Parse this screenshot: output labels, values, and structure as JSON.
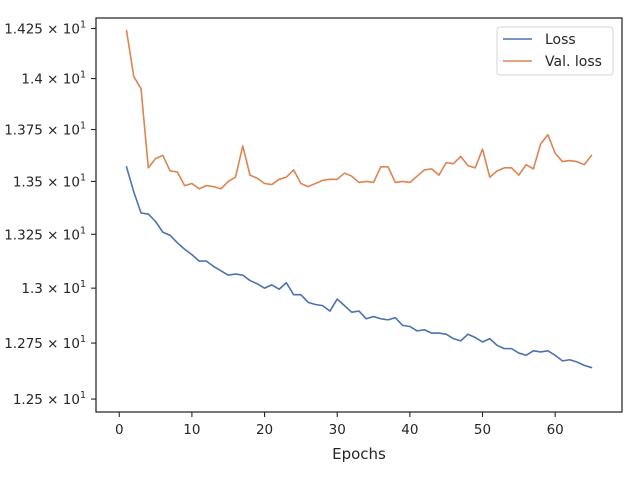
{
  "chart_data": {
    "type": "line",
    "title": "",
    "xlabel": "Epochs",
    "ylabel": "",
    "xlim": [
      -3.2,
      69.2
    ],
    "ylim": [
      12.443,
      14.303
    ],
    "log_y": true,
    "grid": false,
    "legend_position": "top-right",
    "x_ticks": [
      {
        "value": 0,
        "label": "0"
      },
      {
        "value": 10,
        "label": "10"
      },
      {
        "value": 20,
        "label": "20"
      },
      {
        "value": 30,
        "label": "30"
      },
      {
        "value": 40,
        "label": "40"
      },
      {
        "value": 50,
        "label": "50"
      },
      {
        "value": 60,
        "label": "60"
      }
    ],
    "y_ticks": [
      {
        "value": 12.5,
        "label": "1.25 × 10",
        "exponent": "1"
      },
      {
        "value": 12.75,
        "label": "1.275 × 10",
        "exponent": "1"
      },
      {
        "value": 13.0,
        "label": "1.3 × 10",
        "exponent": "1"
      },
      {
        "value": 13.25,
        "label": "1.325 × 10",
        "exponent": "1"
      },
      {
        "value": 13.5,
        "label": "1.35 × 10",
        "exponent": "1"
      },
      {
        "value": 13.75,
        "label": "1.375 × 10",
        "exponent": "1"
      },
      {
        "value": 14.0,
        "label": "1.4 × 10",
        "exponent": "1"
      },
      {
        "value": 14.25,
        "label": "1.425 × 10",
        "exponent": "1"
      }
    ],
    "x": [
      1,
      2,
      3,
      4,
      5,
      6,
      7,
      8,
      9,
      10,
      11,
      12,
      13,
      14,
      15,
      16,
      17,
      18,
      19,
      20,
      21,
      22,
      23,
      24,
      25,
      26,
      27,
      28,
      29,
      30,
      31,
      32,
      33,
      34,
      35,
      36,
      37,
      38,
      39,
      40,
      41,
      42,
      43,
      44,
      45,
      46,
      47,
      48,
      49,
      50,
      51,
      52,
      53,
      54,
      55,
      56,
      57,
      58,
      59,
      60,
      61,
      62,
      63,
      64,
      65
    ],
    "series": [
      {
        "name": "Loss",
        "color": "#4c72b0",
        "values": [
          13.57,
          13.45,
          13.35,
          13.345,
          13.31,
          13.26,
          13.245,
          13.21,
          13.18,
          13.155,
          13.125,
          13.125,
          13.1,
          13.08,
          13.06,
          13.065,
          13.06,
          13.035,
          13.02,
          13.0,
          13.015,
          12.995,
          13.025,
          12.97,
          12.97,
          12.935,
          12.925,
          12.92,
          12.895,
          12.95,
          12.92,
          12.89,
          12.895,
          12.86,
          12.87,
          12.86,
          12.855,
          12.865,
          12.83,
          12.825,
          12.805,
          12.81,
          12.795,
          12.795,
          12.79,
          12.77,
          12.76,
          12.79,
          12.775,
          12.755,
          12.77,
          12.74,
          12.725,
          12.725,
          12.705,
          12.695,
          12.715,
          12.71,
          12.715,
          12.695,
          12.67,
          12.675,
          12.665,
          12.65,
          12.64
        ]
      },
      {
        "name": "Val. loss",
        "color": "#dd8452",
        "values": [
          14.24,
          14.01,
          13.95,
          13.565,
          13.61,
          13.625,
          13.55,
          13.545,
          13.48,
          13.49,
          13.465,
          13.48,
          13.475,
          13.465,
          13.5,
          13.52,
          13.67,
          13.53,
          13.515,
          13.49,
          13.485,
          13.51,
          13.52,
          13.555,
          13.49,
          13.475,
          13.49,
          13.505,
          13.51,
          13.51,
          13.54,
          13.525,
          13.495,
          13.5,
          13.495,
          13.57,
          13.57,
          13.495,
          13.5,
          13.495,
          13.525,
          13.555,
          13.56,
          13.53,
          13.59,
          13.585,
          13.62,
          13.575,
          13.565,
          13.655,
          13.52,
          13.55,
          13.565,
          13.565,
          13.53,
          13.58,
          13.56,
          13.68,
          13.725,
          13.635,
          13.595,
          13.6,
          13.595,
          13.58,
          13.625
        ]
      }
    ]
  }
}
